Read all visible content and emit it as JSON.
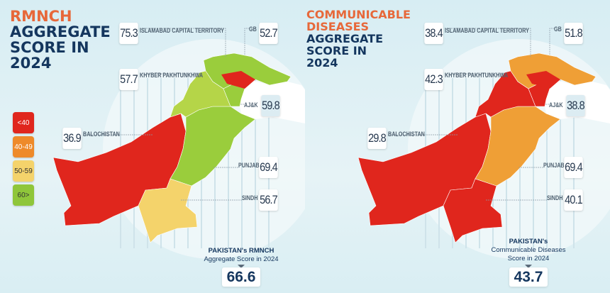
{
  "legend": [
    {
      "label": "<40",
      "color": "#e0261d"
    },
    {
      "label": "40-49",
      "color": "#ee8a2a"
    },
    {
      "label": "50-59",
      "color": "#f4d36b"
    },
    {
      "label": "60>",
      "color": "#8fc63a"
    }
  ],
  "panels": [
    {
      "title_accent": "RMNCH",
      "title_main": [
        "AGGREGATE",
        "SCORE IN",
        "2024"
      ],
      "regions": {
        "islamabad": {
          "label": "ISLAMABAD CAPITAL TERRITORY",
          "value": "75.3"
        },
        "gb": {
          "label": "GB",
          "value": "52.7"
        },
        "kp": {
          "label": "KHYBER PAKHTUNKHWA",
          "value": "57.7"
        },
        "ajk": {
          "label": "AJ&K",
          "value": "59.8"
        },
        "balochistan": {
          "label": "BALOCHISTAN",
          "value": "36.9"
        },
        "punjab": {
          "label": "PUNJAB",
          "value": "69.4"
        },
        "sindh": {
          "label": "SINDH",
          "value": "56.7"
        }
      },
      "map_colors": {
        "balochistan": "#e0261d",
        "sindh": "#f4d36b",
        "punjab": "#9acd3c",
        "kp": "#b5d548",
        "gb": "#9acd3c",
        "ajk": "#9acd3c",
        "north_strip": "#e0261d"
      },
      "national_line1": "PAKISTAN's RMNCH",
      "national_line2": "Aggregate Score in 2024",
      "national_line3": "",
      "national_value": "66.6"
    },
    {
      "title_accent": "COMMUNICABLE DISEASES",
      "title_main": [
        "AGGREGATE",
        "SCORE IN",
        "2024"
      ],
      "regions": {
        "islamabad": {
          "label": "ISLAMABAD CAPITAL TERRITORY",
          "value": "38.4"
        },
        "gb": {
          "label": "GB",
          "value": "51.8"
        },
        "kp": {
          "label": "KHYBER PAKHTUNKHWA",
          "value": "42.3"
        },
        "ajk": {
          "label": "AJ&K",
          "value": "38.8"
        },
        "balochistan": {
          "label": "BALOCHISTAN",
          "value": "29.8"
        },
        "punjab": {
          "label": "PUNJAB",
          "value": "69.4"
        },
        "sindh": {
          "label": "SINDH",
          "value": "40.1"
        }
      },
      "map_colors": {
        "balochistan": "#e0261d",
        "sindh": "#e0261d",
        "punjab": "#ef9f36",
        "kp": "#e0261d",
        "gb": "#ef9f36",
        "ajk": "#e0261d",
        "north_strip": "#e0261d"
      },
      "national_line1": "PAKISTAN's",
      "national_line2": "Communicable Diseases",
      "national_line3": "Score in 2024",
      "national_value": "43.7"
    }
  ]
}
